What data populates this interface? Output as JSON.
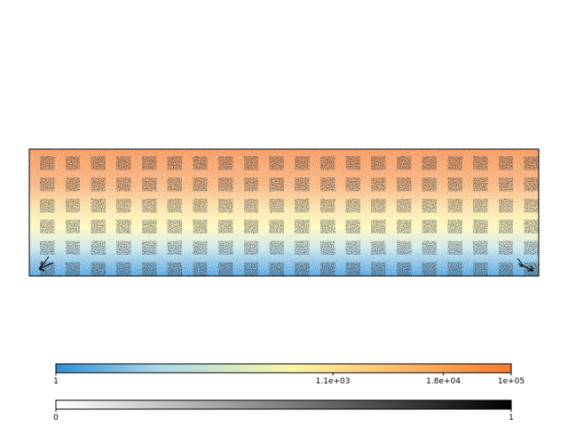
{
  "chart_data": [
    {
      "type": "heatmap",
      "description_of_layers": "continuous field with superimposed square speckle blocks",
      "field": {
        "scale": "log",
        "range": [
          1,
          100000
        ],
        "gradient_rows_top_to_bottom": [
          70000,
          40000,
          5000,
          1000,
          80,
          3
        ]
      },
      "blocks": {
        "rows": 6,
        "cols": 20,
        "row_intensity_top_to_bottom": [
          0.85,
          0.8,
          0.75,
          0.8,
          0.75,
          0.85
        ],
        "corner_arrows": [
          "bottom-left",
          "bottom-right"
        ]
      }
    },
    {
      "type": "colorbar",
      "scale": "log",
      "range": [
        1,
        100000
      ],
      "tick_values": [
        1,
        1100,
        18000,
        100000
      ],
      "tick_labels": [
        "1",
        "1.1e+03",
        "1.8e+04",
        "1e+05"
      ],
      "colors": [
        "#2d8fd6",
        "#a9d7ea",
        "#fbf7a4",
        "#fdb96a",
        "#f87a2c"
      ]
    },
    {
      "type": "colorbar",
      "scale": "linear",
      "range": [
        0,
        1
      ],
      "tick_values": [
        0,
        1
      ],
      "tick_labels": [
        "0",
        "1"
      ],
      "colors": [
        "#ffffff",
        "#000000"
      ]
    }
  ]
}
